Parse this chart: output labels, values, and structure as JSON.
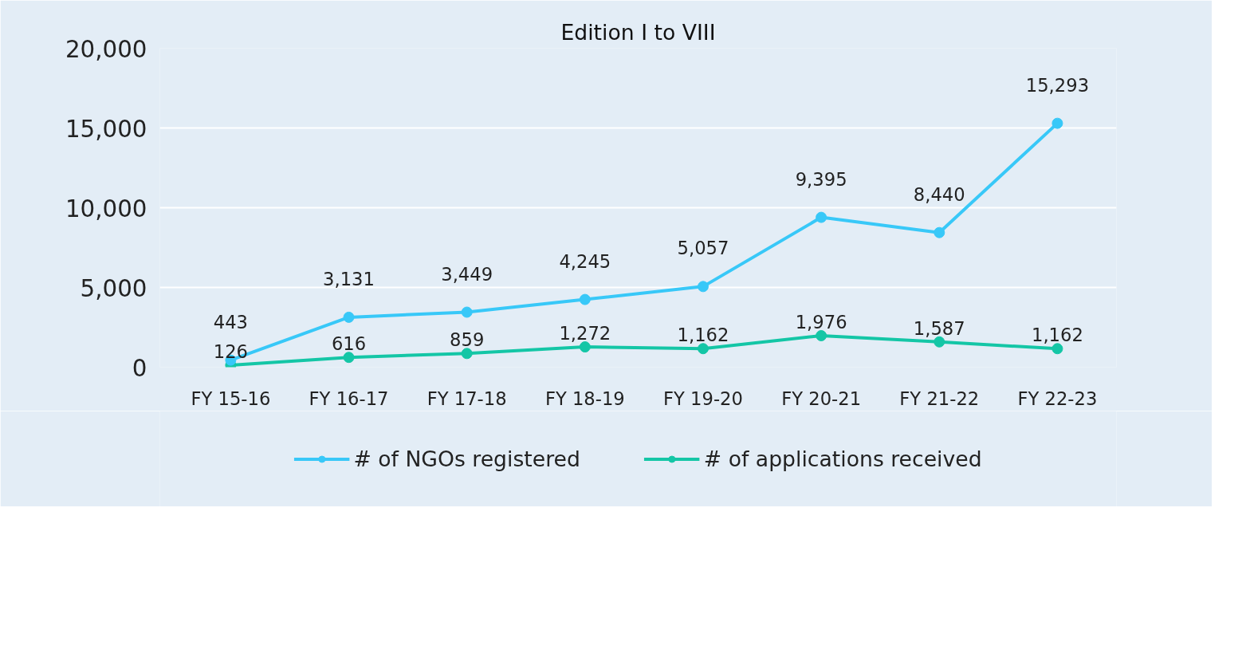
{
  "chart_data": {
    "type": "line",
    "title": "Edition I to VIII",
    "categories": [
      "FY 15-16",
      "FY 16-17",
      "FY 17-18",
      "FY 18-19",
      "FY 19-20",
      "FY 20-21",
      "FY 21-22",
      "FY 22-23"
    ],
    "series": [
      {
        "name": "# of NGOs registered",
        "color": "#38c8f8",
        "values": [
          443,
          3131,
          3449,
          4245,
          5057,
          9395,
          8440,
          15293
        ],
        "value_labels": [
          "443",
          "3,131",
          "3,449",
          "4,245",
          "5,057",
          "9,395",
          "8,440",
          "15,293"
        ]
      },
      {
        "name": "# of applications received",
        "color": "#14c6a6",
        "values": [
          126,
          616,
          859,
          1272,
          1162,
          1976,
          1587,
          1162
        ],
        "value_labels": [
          "126",
          "616",
          "859",
          "1,272",
          "1,162",
          "1,976",
          "1,587",
          "1,162"
        ]
      }
    ],
    "ylim": [
      0,
      20000
    ],
    "yticks": [
      {
        "value": 0,
        "label": "0"
      },
      {
        "value": 5000,
        "label": "5,000"
      },
      {
        "value": 10000,
        "label": "10,000"
      },
      {
        "value": 15000,
        "label": "15,000"
      },
      {
        "value": 20000,
        "label": "20,000"
      }
    ],
    "grid": "y",
    "legend": "bottom",
    "marker": "circle",
    "line_style": "solid"
  }
}
